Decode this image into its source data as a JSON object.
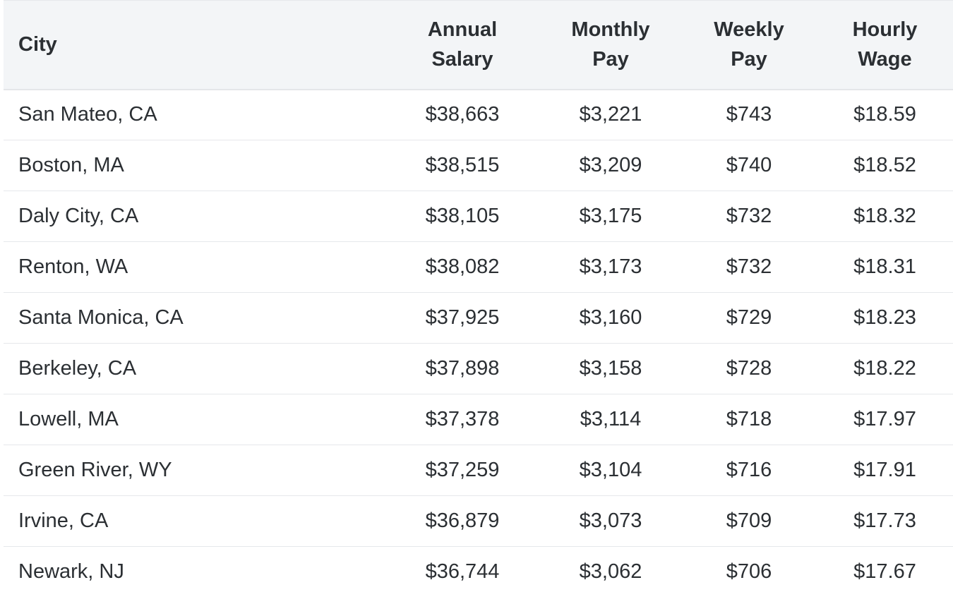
{
  "table": {
    "headers": {
      "city": "City",
      "annual": [
        "Annual",
        "Salary"
      ],
      "monthly": [
        "Monthly",
        "Pay"
      ],
      "weekly": [
        "Weekly",
        "Pay"
      ],
      "hourly": [
        "Hourly",
        "Wage"
      ]
    },
    "rows": [
      {
        "city": "San Mateo, CA",
        "annual": "$38,663",
        "monthly": "$3,221",
        "weekly": "$743",
        "hourly": "$18.59"
      },
      {
        "city": "Boston, MA",
        "annual": "$38,515",
        "monthly": "$3,209",
        "weekly": "$740",
        "hourly": "$18.52"
      },
      {
        "city": "Daly City, CA",
        "annual": "$38,105",
        "monthly": "$3,175",
        "weekly": "$732",
        "hourly": "$18.32"
      },
      {
        "city": "Renton, WA",
        "annual": "$38,082",
        "monthly": "$3,173",
        "weekly": "$732",
        "hourly": "$18.31"
      },
      {
        "city": "Santa Monica, CA",
        "annual": "$37,925",
        "monthly": "$3,160",
        "weekly": "$729",
        "hourly": "$18.23"
      },
      {
        "city": "Berkeley, CA",
        "annual": "$37,898",
        "monthly": "$3,158",
        "weekly": "$728",
        "hourly": "$18.22"
      },
      {
        "city": "Lowell, MA",
        "annual": "$37,378",
        "monthly": "$3,114",
        "weekly": "$718",
        "hourly": "$17.97"
      },
      {
        "city": "Green River, WY",
        "annual": "$37,259",
        "monthly": "$3,104",
        "weekly": "$716",
        "hourly": "$17.91"
      },
      {
        "city": "Irvine, CA",
        "annual": "$36,879",
        "monthly": "$3,073",
        "weekly": "$709",
        "hourly": "$17.73"
      },
      {
        "city": "Newark, NJ",
        "annual": "$36,744",
        "monthly": "$3,062",
        "weekly": "$706",
        "hourly": "$17.67"
      }
    ]
  }
}
